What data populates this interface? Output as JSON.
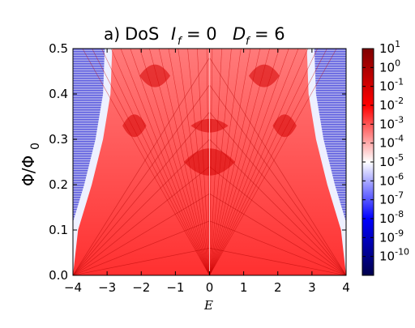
{
  "chart_data": {
    "type": "heatmap",
    "panel_label": "a)",
    "title": "DoS  I_f = 0   D_f = 6",
    "title_parts": {
      "prefix": "DoS",
      "eq1_sym": "I",
      "eq1_sub": "f",
      "eq1_val": "= 0",
      "eq2_sym": "D",
      "eq2_sub": "f",
      "eq2_val": "= 6"
    },
    "xlabel": "E",
    "ylabel": "Φ/Φ",
    "ylabel_sub": "0",
    "xlim": [
      -4,
      4
    ],
    "ylim": [
      0.0,
      0.5
    ],
    "x_ticks": [
      -4,
      -3,
      -2,
      -1,
      0,
      1,
      2,
      3,
      4
    ],
    "x_tick_labels": [
      "−4",
      "−3",
      "−2",
      "−1",
      "0",
      "1",
      "2",
      "3",
      "4"
    ],
    "y_ticks": [
      0.0,
      0.1,
      0.2,
      0.3,
      0.4,
      0.5
    ],
    "y_tick_labels": [
      "0.0",
      "0.1",
      "0.2",
      "0.3",
      "0.4",
      "0.5"
    ],
    "colorbar": {
      "scale": "log",
      "colormap": "seismic",
      "min_exponent": -11,
      "max_exponent": 1,
      "ticks": [
        {
          "base": "10",
          "exp": "1"
        },
        {
          "base": "10",
          "exp": "0"
        },
        {
          "base": "10",
          "exp": "-1"
        },
        {
          "base": "10",
          "exp": "-2"
        },
        {
          "base": "10",
          "exp": "-3"
        },
        {
          "base": "10",
          "exp": "-4"
        },
        {
          "base": "10",
          "exp": "-5"
        },
        {
          "base": "10",
          "exp": "-6"
        },
        {
          "base": "10",
          "exp": "-7"
        },
        {
          "base": "10",
          "exp": "-8"
        },
        {
          "base": "10",
          "exp": "-9"
        },
        {
          "base": "10",
          "exp": "-10"
        }
      ]
    },
    "spectrum_edge": [
      {
        "phi": 0.0,
        "E": 4.0
      },
      {
        "phi": 0.1,
        "E": 3.85
      },
      {
        "phi": 0.2,
        "E": 3.45
      },
      {
        "phi": 0.3,
        "E": 3.12
      },
      {
        "phi": 0.4,
        "E": 2.9
      },
      {
        "phi": 0.5,
        "E": 2.85
      }
    ]
  }
}
